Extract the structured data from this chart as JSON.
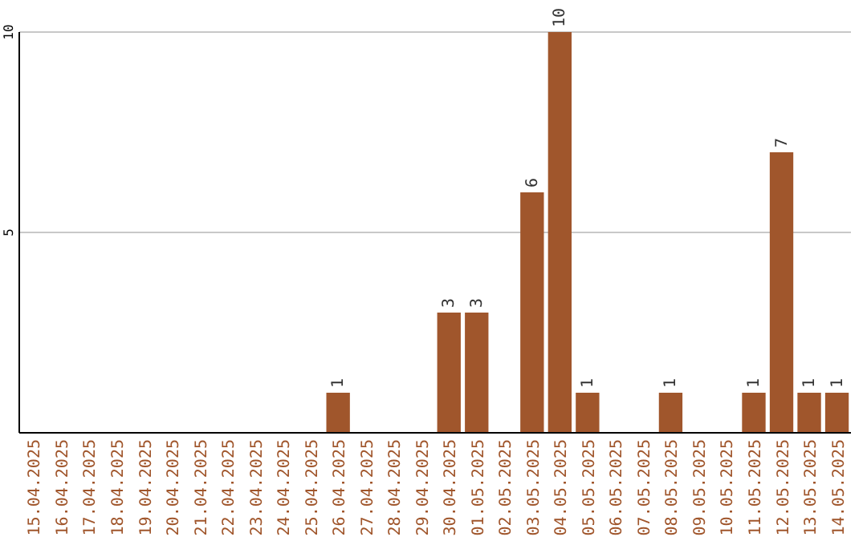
{
  "chart_data": {
    "type": "bar",
    "categories": [
      "15.04.2025",
      "16.04.2025",
      "17.04.2025",
      "18.04.2025",
      "19.04.2025",
      "20.04.2025",
      "21.04.2025",
      "22.04.2025",
      "23.04.2025",
      "24.04.2025",
      "25.04.2025",
      "26.04.2025",
      "27.04.2025",
      "28.04.2025",
      "29.04.2025",
      "30.04.2025",
      "01.05.2025",
      "02.05.2025",
      "03.05.2025",
      "04.05.2025",
      "05.05.2025",
      "06.05.2025",
      "07.05.2025",
      "08.05.2025",
      "09.05.2025",
      "10.05.2025",
      "11.05.2025",
      "12.05.2025",
      "13.05.2025",
      "14.05.2025"
    ],
    "values": [
      0,
      0,
      0,
      0,
      0,
      0,
      0,
      0,
      0,
      0,
      0,
      1,
      0,
      0,
      0,
      3,
      3,
      0,
      6,
      10,
      1,
      0,
      0,
      1,
      0,
      0,
      1,
      7,
      1,
      1
    ],
    "value_labels": [
      null,
      null,
      null,
      null,
      null,
      null,
      null,
      null,
      null,
      null,
      null,
      "1",
      null,
      null,
      null,
      "3",
      "3",
      null,
      "6",
      "10",
      "1",
      null,
      null,
      "1",
      null,
      null,
      "1",
      "7",
      "1",
      "1"
    ],
    "color": "#a0562c",
    "ylim": [
      0,
      10
    ],
    "yticks": [
      5,
      10
    ],
    "grid": "y"
  }
}
